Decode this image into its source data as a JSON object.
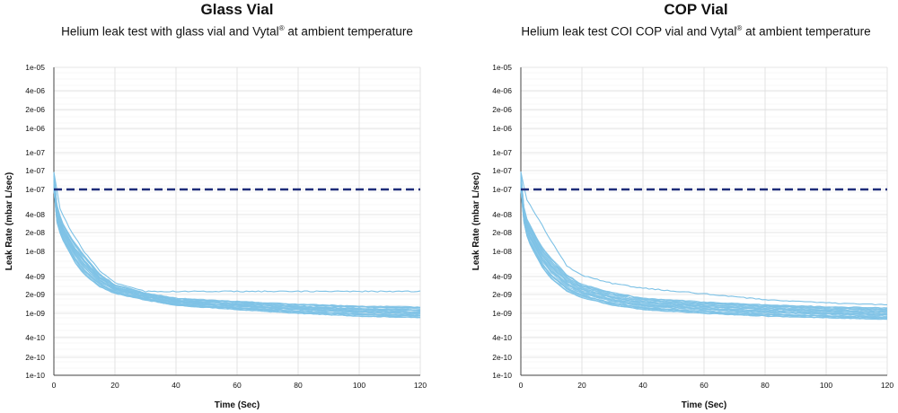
{
  "chart_data": [
    {
      "type": "line",
      "title": "Glass Vial",
      "subtitle_pre": "Helium leak test with glass vial and Vytal",
      "subtitle_sup": "®",
      "subtitle_post": " at ambient temperature",
      "xlabel": "Time (Sec)",
      "ylabel": "Leak Rate (mbar L/sec)",
      "xlim": [
        0,
        120
      ],
      "ylim": [
        1e-10,
        1e-05
      ],
      "yscale": "log",
      "grid": true,
      "x_ticks": [
        "0",
        "20",
        "40",
        "60",
        "80",
        "100",
        "120"
      ],
      "y_ticks": [
        "1e-05",
        "4e-06",
        "2e-06",
        "1e-06",
        "1e-07",
        "1e-07",
        "1e-07",
        "4e-08",
        "2e-08",
        "1e-08",
        "4e-09",
        "2e-09",
        "1e-09",
        "4e-10",
        "2e-10",
        "1e-10"
      ],
      "threshold": {
        "value": 1e-07,
        "color": "#1f2d7a",
        "style": "dashed"
      },
      "series_color": "#7ec2e6",
      "series_note": "approx. 25 overlapping test runs",
      "curve_x": [
        0,
        1,
        2,
        3,
        5,
        7,
        10,
        15,
        20,
        30,
        40,
        60,
        80,
        100,
        120
      ],
      "curve_upper": [
        2e-07,
        6e-08,
        4e-08,
        3e-08,
        2e-08,
        1.4e-08,
        9e-09,
        4.5e-09,
        3e-09,
        2.2e-09,
        1.8e-09,
        1.6e-09,
        1.45e-09,
        1.35e-09,
        1.3e-09
      ],
      "curve_lower": [
        1e-07,
        3e-08,
        2e-08,
        1.5e-08,
        1e-08,
        6.5e-09,
        4.2e-09,
        2.7e-09,
        2.1e-09,
        1.65e-09,
        1.35e-09,
        1.15e-09,
        1e-09,
        9e-10,
        8.5e-10
      ],
      "outlier_x": [
        0,
        2,
        5,
        10,
        15,
        20,
        30
      ],
      "outlier_y": [
        2e-07,
        5e-08,
        2.5e-08,
        1e-08,
        5e-09,
        3.2e-09,
        2.3e-09
      ]
    },
    {
      "type": "line",
      "title": "COP Vial",
      "subtitle_pre": "Helium leak test  COI COP vial and Vytal",
      "subtitle_sup": "®",
      "subtitle_post": " at ambient temperature",
      "xlabel": "Time (Sec)",
      "ylabel": "Leak Rate (mbar L/sec)",
      "xlim": [
        0,
        120
      ],
      "ylim": [
        1e-10,
        1e-05
      ],
      "yscale": "log",
      "grid": true,
      "x_ticks": [
        "0",
        "20",
        "40",
        "60",
        "80",
        "100",
        "120"
      ],
      "y_ticks": [
        "1e-05",
        "4e-06",
        "2e-06",
        "1e-06",
        "1e-07",
        "1e-07",
        "1e-07",
        "4e-08",
        "2e-08",
        "1e-08",
        "4e-09",
        "2e-09",
        "1e-09",
        "4e-10",
        "2e-10",
        "1e-10"
      ],
      "threshold": {
        "value": 1e-07,
        "color": "#1f2d7a",
        "style": "dashed"
      },
      "series_color": "#7ec2e6",
      "series_note": "approx. 25 overlapping test runs",
      "curve_x": [
        0,
        1,
        2,
        3,
        5,
        7,
        10,
        15,
        20,
        30,
        40,
        60,
        80,
        100,
        120
      ],
      "curve_upper": [
        2e-07,
        5.5e-08,
        3.5e-08,
        2.8e-08,
        1.8e-08,
        1.2e-08,
        8e-09,
        4.3e-09,
        3e-09,
        2.2e-09,
        1.8e-09,
        1.55e-09,
        1.4e-09,
        1.3e-09,
        1.25e-09
      ],
      "curve_lower": [
        1e-07,
        3e-08,
        1.8e-08,
        1.3e-08,
        8.5e-09,
        5.5e-09,
        3.6e-09,
        2.3e-09,
        1.8e-09,
        1.35e-09,
        1.15e-09,
        1e-09,
        9e-10,
        8.5e-10,
        8e-10
      ],
      "outlier_x": [
        0,
        2,
        5,
        10,
        15,
        20,
        30,
        40,
        60,
        80,
        100,
        120
      ],
      "outlier_y": [
        2e-07,
        7e-08,
        4e-08,
        1.5e-08,
        6e-09,
        4.2e-09,
        3.1e-09,
        2.6e-09,
        2.1e-09,
        1.7e-09,
        1.5e-09,
        1.4e-09
      ]
    }
  ]
}
